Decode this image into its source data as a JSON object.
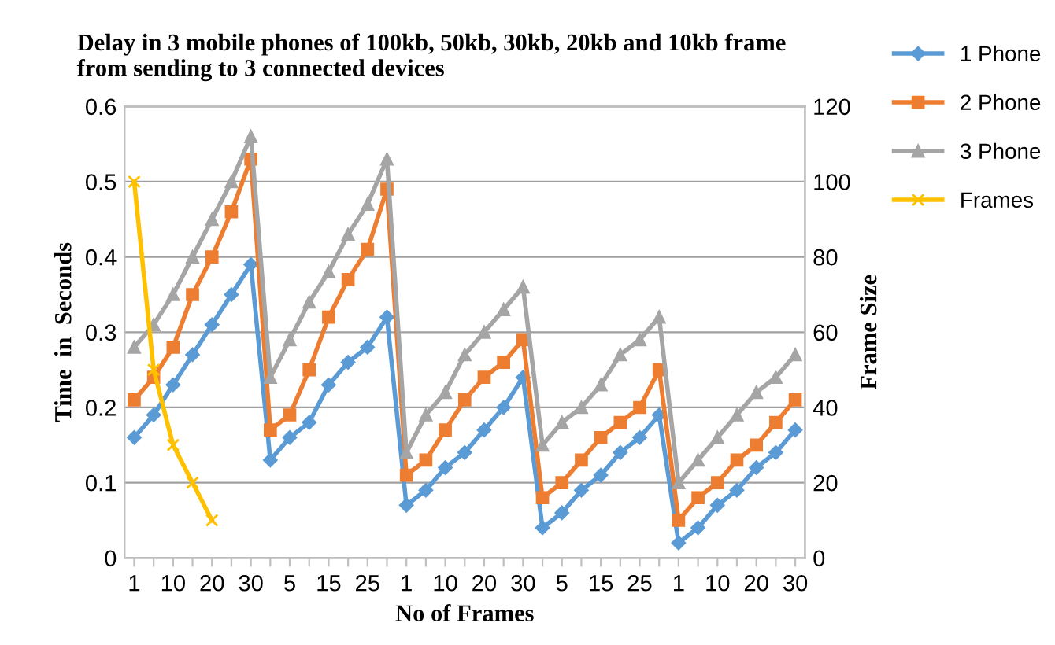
{
  "chart_data": {
    "type": "line",
    "title": "Delay in 3 mobile phones of 100kb, 50kb, 30kb, 20kb and 10kb frame\nfrom sending to 3 connected devices",
    "xlabel": "No of Frames",
    "ylabel": "Time  in  Seconds",
    "y2label": "Frame Size",
    "categories": [
      "1",
      null,
      "10",
      null,
      "20",
      null,
      "30",
      null,
      "5",
      null,
      "15",
      null,
      "25",
      null,
      "1",
      null,
      "10",
      null,
      "20",
      null,
      "30",
      null,
      "5",
      null,
      "15",
      null,
      "25",
      null,
      "1",
      null,
      "10",
      null,
      "20",
      null,
      "30"
    ],
    "series": [
      {
        "name": "1 Phone",
        "color": "#5b9bd5",
        "marker": "diamond",
        "values": [
          0.16,
          0.19,
          0.23,
          0.27,
          0.31,
          0.35,
          0.39,
          0.13,
          0.16,
          0.18,
          0.23,
          0.26,
          0.28,
          0.32,
          0.07,
          0.09,
          0.12,
          0.14,
          0.17,
          0.2,
          0.24,
          0.04,
          0.06,
          0.09,
          0.11,
          0.14,
          0.16,
          0.19,
          0.02,
          0.04,
          0.07,
          0.09,
          0.12,
          0.14,
          0.17
        ]
      },
      {
        "name": "2 Phone",
        "color": "#ed7d31",
        "marker": "square",
        "values": [
          0.21,
          0.24,
          0.28,
          0.35,
          0.4,
          0.46,
          0.53,
          0.17,
          0.19,
          0.25,
          0.32,
          0.37,
          0.41,
          0.49,
          0.11,
          0.13,
          0.17,
          0.21,
          0.24,
          0.26,
          0.29,
          0.08,
          0.1,
          0.13,
          0.16,
          0.18,
          0.2,
          0.25,
          0.05,
          0.08,
          0.1,
          0.13,
          0.15,
          0.18,
          0.21
        ]
      },
      {
        "name": "3 Phone",
        "color": "#a5a5a5",
        "marker": "triangle",
        "values": [
          0.28,
          0.31,
          0.35,
          0.4,
          0.45,
          0.5,
          0.56,
          0.24,
          0.29,
          0.34,
          0.38,
          0.43,
          0.47,
          0.53,
          0.14,
          0.19,
          0.22,
          0.27,
          0.3,
          0.33,
          0.36,
          0.15,
          0.18,
          0.2,
          0.23,
          0.27,
          0.29,
          0.32,
          0.1,
          0.13,
          0.16,
          0.19,
          0.22,
          0.24,
          0.27
        ]
      },
      {
        "name": "Frames",
        "color": "#ffc000",
        "marker": "cross",
        "axis": "y2",
        "values": [
          100,
          50,
          30,
          20,
          10,
          null,
          null,
          null,
          null,
          null,
          null,
          null,
          null,
          null,
          null,
          null,
          null,
          null,
          null,
          null,
          null,
          null,
          null,
          null,
          null,
          null,
          null,
          null,
          null,
          null,
          null,
          null,
          null,
          null,
          null
        ]
      }
    ],
    "ylim": [
      0,
      0.6
    ],
    "yticks": [
      {
        "value": 0,
        "label": "0"
      },
      0.1,
      0.2,
      0.3,
      0.4,
      0.5,
      0.6
    ],
    "y2lim": [
      0,
      120
    ],
    "y2ticks": [
      0,
      20,
      40,
      60,
      80,
      100,
      120
    ],
    "grid": "y",
    "legend": "right"
  }
}
